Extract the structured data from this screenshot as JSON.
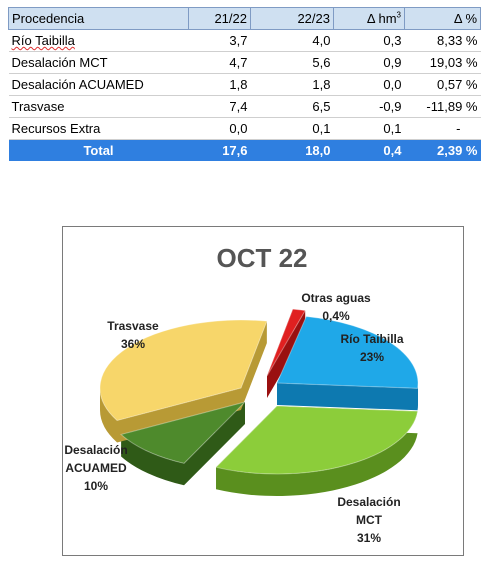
{
  "table": {
    "headers": [
      "Procedencia",
      "21/22",
      "22/23",
      "Δ hm",
      "Δ %"
    ],
    "delta_hm_unit_superscript": "3",
    "rows": [
      [
        "Río Taibilla",
        "3,7",
        "4,0",
        "0,3",
        "8,33 %"
      ],
      [
        "Desalación MCT",
        "4,7",
        "5,6",
        "0,9",
        "19,03 %"
      ],
      [
        "Desalación ACUAMED",
        "1,8",
        "1,8",
        "0,0",
        "0,57 %"
      ],
      [
        "Trasvase",
        "7,4",
        "6,5",
        "-0,9",
        "-11,89 %"
      ],
      [
        "Recursos Extra",
        "0,0",
        "0,1",
        "0,1",
        "-"
      ]
    ],
    "total": [
      "Total",
      "17,6",
      "18,0",
      "0,4",
      "2,39 %"
    ],
    "colors": {
      "header_bg": "#cfe0f1",
      "total_bg": "#2f7fe0"
    }
  },
  "chart_data": {
    "type": "pie",
    "title": "OCT 22",
    "slices": [
      {
        "label_lines": [
          "Río Taibilla",
          "23%"
        ],
        "value": 23,
        "color": "#1fa8e8",
        "side": "#0d79b0"
      },
      {
        "label_lines": [
          "Desalación",
          "MCT",
          "31%"
        ],
        "value": 31,
        "color": "#8ccd3a",
        "side": "#5a8f1e"
      },
      {
        "label_lines": [
          "Desalación",
          "ACUAMED",
          "10%"
        ],
        "value": 10,
        "color": "#4e8a2c",
        "side": "#2f5a17"
      },
      {
        "label_lines": [
          "Trasvase",
          "36%"
        ],
        "value": 36,
        "color": "#f7d66a",
        "side": "#b89a35"
      },
      {
        "label_lines": [
          "Otras aguas",
          "0,4%"
        ],
        "value": 0.4,
        "color": "#e02020",
        "side": "#9a1010"
      }
    ]
  }
}
